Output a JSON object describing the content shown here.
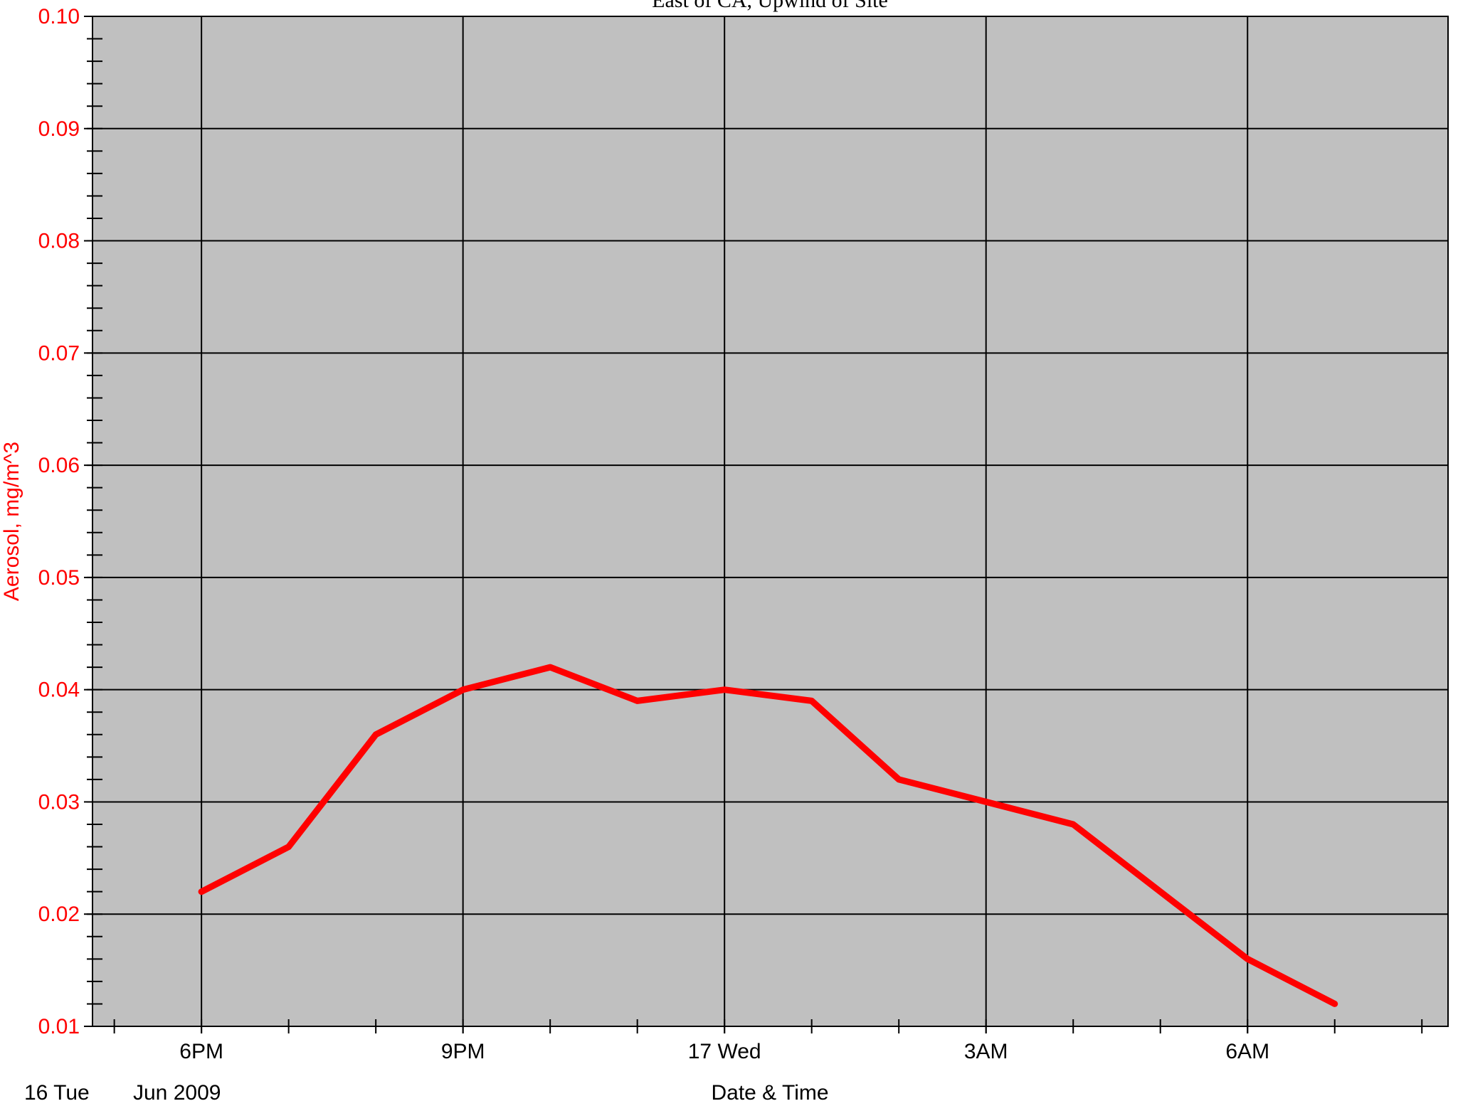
{
  "chart_data": {
    "type": "line",
    "title": "East of CA, Upwind of Site",
    "xlabel": "Date & Time",
    "ylabel": "Aerosol, mg/m^3",
    "date_label_left": "16 Tue",
    "date_label_month": "Jun 2009",
    "x_ticks": [
      {
        "hour": 18,
        "label": "6PM"
      },
      {
        "hour": 21,
        "label": "9PM"
      },
      {
        "hour": 24,
        "label": "17 Wed"
      },
      {
        "hour": 27,
        "label": "3AM"
      },
      {
        "hour": 30,
        "label": "6AM"
      }
    ],
    "xlim": [
      16.75,
      32.3
    ],
    "ylim": [
      0.01,
      0.1
    ],
    "y_ticks": [
      "0.01",
      "0.02",
      "0.03",
      "0.04",
      "0.05",
      "0.06",
      "0.07",
      "0.08",
      "0.09",
      "0.10"
    ],
    "grid": true,
    "colors": {
      "series": "#ff0000",
      "plot_background": "#c0c0c0",
      "grid": "#000000",
      "axis_text": "#ff0000"
    },
    "series": [
      {
        "hour": [
          18,
          19,
          20,
          21,
          22,
          23,
          24,
          25,
          26,
          27,
          28,
          29,
          30,
          31
        ],
        "values": [
          0.022,
          0.026,
          0.036,
          0.04,
          0.042,
          0.039,
          0.04,
          0.039,
          0.032,
          0.03,
          0.028,
          0.022,
          0.016,
          0.012
        ]
      }
    ]
  }
}
